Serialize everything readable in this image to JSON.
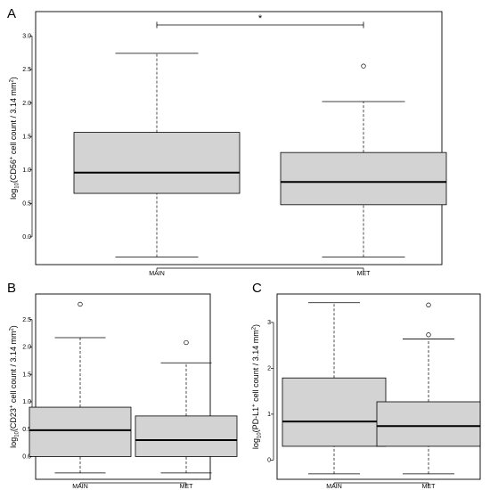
{
  "chart_data": [
    {
      "panel": "A",
      "type": "box",
      "categories": [
        "MAIN",
        "MET"
      ],
      "ylabel": {
        "base": "log",
        "sub": "10",
        "pre": "(CD56",
        "sup1": "+",
        "mid": " cell count / 3.14 mm",
        "sup2": "2",
        "post": ")"
      },
      "ylim": [
        -0.4,
        3.35
      ],
      "yticks": [
        "0.0",
        "0.5",
        "1.0",
        "1.5",
        "2.0",
        "2.5",
        "3.0"
      ],
      "boxes": [
        {
          "name": "MAIN",
          "min": -0.3,
          "q1": 0.65,
          "median": 0.96,
          "q3": 1.56,
          "max": 2.74,
          "outliers": []
        },
        {
          "name": "MET",
          "min": -0.3,
          "q1": 0.48,
          "median": 0.82,
          "q3": 1.26,
          "max": 2.02,
          "outliers": [
            2.55
          ]
        }
      ],
      "significance": "*"
    },
    {
      "panel": "B",
      "type": "box",
      "categories": [
        "MAIN",
        "MET"
      ],
      "ylabel": {
        "base": "log",
        "sub": "10",
        "pre": "(CD23",
        "sup1": "+",
        "mid": " cell count / 3.14 mm",
        "sup2": "2",
        "post": ")"
      },
      "ylim": [
        -0.4,
        2.95
      ],
      "yticks": [
        "0.0",
        "0.5",
        "1.0",
        "1.5",
        "2.0",
        "2.5"
      ],
      "boxes": [
        {
          "name": "MAIN",
          "min": -0.3,
          "q1": 0.0,
          "median": 0.48,
          "q3": 0.9,
          "max": 2.17,
          "outliers": [
            2.78
          ]
        },
        {
          "name": "MET",
          "min": -0.3,
          "q1": 0.0,
          "median": 0.3,
          "q3": 0.74,
          "max": 1.71,
          "outliers": [
            2.08
          ]
        }
      ]
    },
    {
      "panel": "C",
      "type": "box",
      "categories": [
        "MAIN",
        "MET"
      ],
      "ylabel": {
        "base": "log",
        "sub": "10",
        "pre": "(PD-L1",
        "sup1": "+",
        "mid": " cell count / 3.14 mm",
        "sup2": "2",
        "post": ")"
      },
      "ylim": [
        -0.4,
        3.6
      ],
      "yticks": [
        "0",
        "1",
        "2",
        "3"
      ],
      "boxes": [
        {
          "name": "MAIN",
          "min": -0.3,
          "q1": 0.3,
          "median": 0.84,
          "q3": 1.79,
          "max": 3.43,
          "outliers": []
        },
        {
          "name": "MET",
          "min": -0.3,
          "q1": 0.3,
          "median": 0.74,
          "q3": 1.27,
          "max": 2.64,
          "outliers": [
            2.73,
            3.38
          ]
        }
      ]
    }
  ]
}
